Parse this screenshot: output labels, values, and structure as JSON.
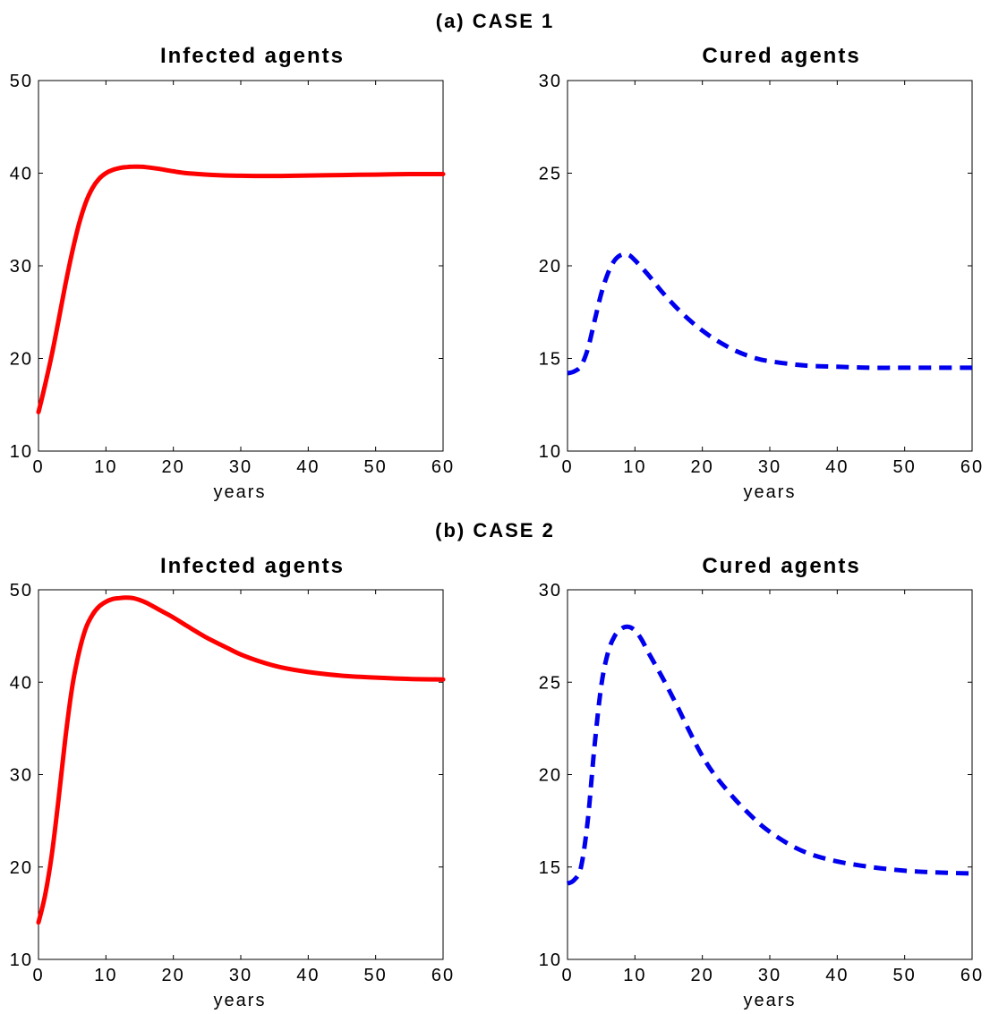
{
  "figure": {
    "case_titles": [
      "(a) CASE 1",
      "(b) CASE 2"
    ]
  },
  "chart_data": [
    {
      "type": "line",
      "title": "Infected agents",
      "xlabel": "years",
      "ylabel": "",
      "xlim": [
        0,
        60
      ],
      "ylim": [
        10,
        50
      ],
      "xticks": [
        0,
        10,
        20,
        30,
        40,
        50,
        60
      ],
      "yticks": [
        10,
        20,
        30,
        40,
        50
      ],
      "style": "solid",
      "color": "#ff0000",
      "series": [
        {
          "x": [
            0,
            1,
            2,
            3,
            4,
            5,
            6,
            7,
            8,
            9,
            10,
            11,
            12,
            13,
            14,
            15,
            16,
            18,
            20,
            22,
            25,
            28,
            30,
            33,
            36,
            40,
            45,
            50,
            55,
            60
          ],
          "values": [
            14.2,
            17.2,
            20.5,
            24.2,
            28.0,
            31.5,
            34.5,
            36.8,
            38.4,
            39.4,
            40.0,
            40.35,
            40.55,
            40.65,
            40.7,
            40.7,
            40.65,
            40.45,
            40.2,
            40.0,
            39.85,
            39.75,
            39.72,
            39.7,
            39.7,
            39.75,
            39.8,
            39.85,
            39.9,
            39.9
          ]
        }
      ]
    },
    {
      "type": "line",
      "title": "Cured agents",
      "xlabel": "years",
      "ylabel": "",
      "xlim": [
        0,
        60
      ],
      "ylim": [
        10,
        30
      ],
      "xticks": [
        0,
        10,
        20,
        30,
        40,
        50,
        60
      ],
      "yticks": [
        10,
        15,
        20,
        25,
        30
      ],
      "style": "dashed",
      "color": "#0000ee",
      "series": [
        {
          "x": [
            0,
            1,
            2,
            3,
            4,
            5,
            6,
            7,
            8,
            9,
            10,
            12,
            14,
            16,
            18,
            20,
            22,
            25,
            28,
            30,
            33,
            36,
            40,
            45,
            50,
            55,
            60
          ],
          "values": [
            14.2,
            14.3,
            14.6,
            15.5,
            17.0,
            18.5,
            19.6,
            20.3,
            20.6,
            20.6,
            20.3,
            19.5,
            18.6,
            17.8,
            17.1,
            16.5,
            16.0,
            15.4,
            15.0,
            14.85,
            14.7,
            14.6,
            14.55,
            14.5,
            14.5,
            14.5,
            14.5
          ]
        }
      ]
    },
    {
      "type": "line",
      "title": "Infected agents",
      "xlabel": "years",
      "ylabel": "",
      "xlim": [
        0,
        60
      ],
      "ylim": [
        10,
        50
      ],
      "xticks": [
        0,
        10,
        20,
        30,
        40,
        50,
        60
      ],
      "yticks": [
        10,
        20,
        30,
        40,
        50
      ],
      "style": "solid",
      "color": "#ff0000",
      "series": [
        {
          "x": [
            0,
            1,
            2,
            3,
            4,
            5,
            6,
            7,
            8,
            9,
            10,
            11,
            12,
            13,
            14,
            15,
            16,
            18,
            20,
            22,
            25,
            28,
            30,
            33,
            36,
            40,
            45,
            50,
            55,
            60
          ],
          "values": [
            14.0,
            17.0,
            21.5,
            27.5,
            34.0,
            39.5,
            43.2,
            45.8,
            47.3,
            48.2,
            48.7,
            49.0,
            49.1,
            49.15,
            49.1,
            48.9,
            48.6,
            47.8,
            47.0,
            46.1,
            44.8,
            43.7,
            43.0,
            42.2,
            41.6,
            41.1,
            40.7,
            40.5,
            40.35,
            40.3
          ]
        }
      ]
    },
    {
      "type": "line",
      "title": "Cured agents",
      "xlabel": "years",
      "ylabel": "",
      "xlim": [
        0,
        60
      ],
      "ylim": [
        10,
        30
      ],
      "xticks": [
        0,
        10,
        20,
        30,
        40,
        50,
        60
      ],
      "yticks": [
        10,
        15,
        20,
        25,
        30
      ],
      "style": "dashed",
      "color": "#0000ee",
      "series": [
        {
          "x": [
            0,
            1,
            2,
            3,
            4,
            5,
            6,
            7,
            8,
            9,
            10,
            11,
            12,
            14,
            16,
            18,
            20,
            22,
            25,
            28,
            30,
            33,
            36,
            40,
            45,
            50,
            55,
            60
          ],
          "values": [
            14.1,
            14.3,
            15.0,
            17.5,
            21.5,
            24.8,
            26.6,
            27.5,
            27.9,
            28.0,
            27.8,
            27.3,
            26.6,
            25.3,
            23.9,
            22.4,
            21.0,
            19.9,
            18.6,
            17.5,
            16.9,
            16.2,
            15.7,
            15.3,
            15.0,
            14.8,
            14.7,
            14.65
          ]
        }
      ]
    }
  ]
}
